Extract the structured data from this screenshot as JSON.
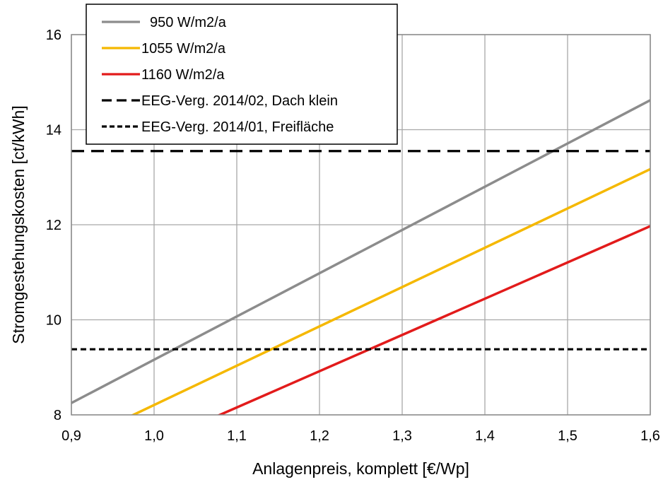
{
  "chart_data": {
    "type": "line",
    "title": "",
    "xlabel": "Anlagenpreis, komplett [€/Wp]",
    "ylabel": "Stromgestehungskosten [ct/kWh]",
    "xlim": [
      0.9,
      1.6
    ],
    "ylim": [
      8,
      16
    ],
    "x_ticks": [
      0.9,
      1.0,
      1.1,
      1.2,
      1.3,
      1.4,
      1.5,
      1.6
    ],
    "x_tick_labels": [
      "0,9",
      "1,0",
      "1,1",
      "1,2",
      "1,3",
      "1,4",
      "1,5",
      "1,6"
    ],
    "y_ticks": [
      8,
      10,
      12,
      14,
      16
    ],
    "y_tick_labels": [
      "8",
      "10",
      "12",
      "14",
      "16"
    ],
    "grid": true,
    "legend_position": "top-left",
    "series": [
      {
        "name": "950 W/m2/a",
        "color": "#8c8c8c",
        "style": "solid",
        "x": [
          0.9,
          1.6
        ],
        "y": [
          8.25,
          14.62
        ]
      },
      {
        "name": "1055 W/m2/a",
        "color": "#f5b800",
        "style": "solid",
        "x": [
          0.9,
          1.6
        ],
        "y": [
          7.38,
          13.17
        ]
      },
      {
        "name": "1160 W/m2/a",
        "color": "#e21b1b",
        "style": "solid",
        "x": [
          0.9,
          1.6
        ],
        "y": [
          6.63,
          11.97
        ]
      },
      {
        "name": "EEG-Verg. 2014/02, Dach klein",
        "color": "#000000",
        "style": "long-dash",
        "x": [
          0.9,
          1.6
        ],
        "y": [
          13.55,
          13.55
        ]
      },
      {
        "name": "EEG-Verg. 2014/01, Freifläche",
        "color": "#000000",
        "style": "short-dash",
        "x": [
          0.9,
          1.6
        ],
        "y": [
          9.38,
          9.38
        ]
      }
    ]
  }
}
